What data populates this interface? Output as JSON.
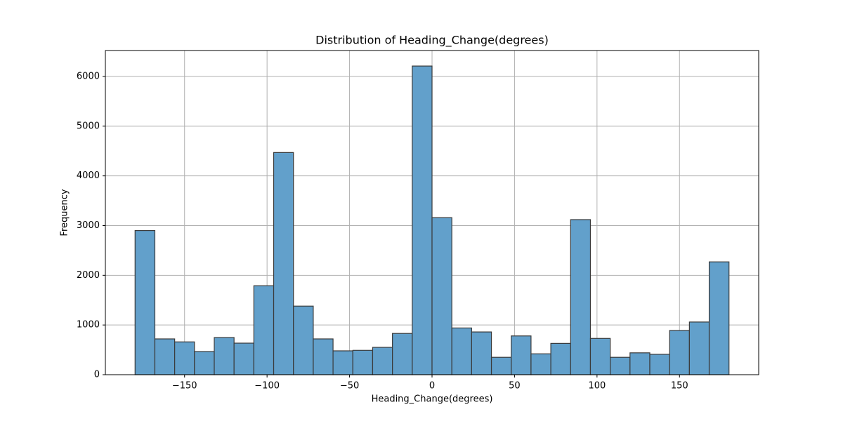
{
  "chart_data": {
    "type": "histogram",
    "title": "Distribution of Heading_Change(degrees)",
    "x_label": "Heading_Change(degrees)",
    "y_label": "Frequency",
    "bins": [
      -180,
      -168,
      -156,
      -144,
      -132,
      -120,
      -108,
      -96,
      -84,
      -72,
      -60,
      -48,
      -36,
      -24,
      -12,
      0,
      12,
      24,
      36,
      48,
      60,
      72,
      84,
      96,
      108,
      120,
      132,
      144,
      156,
      168,
      180
    ],
    "values": [
      2900,
      720,
      660,
      466,
      748,
      635,
      1790,
      4470,
      1380,
      720,
      480,
      490,
      550,
      830,
      6210,
      3160,
      940,
      860,
      350,
      780,
      420,
      630,
      3120,
      730,
      350,
      440,
      410,
      890,
      1060,
      2270
    ],
    "color": "#62a0cb",
    "edgecolor": "#3a3a3a",
    "xlim": [
      -198,
      198
    ],
    "ylim": [
      0,
      6522
    ],
    "xticks": [
      {
        "value": -150,
        "label": "−150"
      },
      {
        "value": -100,
        "label": "−100"
      },
      {
        "value": -50,
        "label": "−50"
      },
      0,
      50,
      100,
      150
    ],
    "yticks": [
      0,
      1000,
      2000,
      3000,
      4000,
      5000,
      6000
    ],
    "grid": true
  }
}
